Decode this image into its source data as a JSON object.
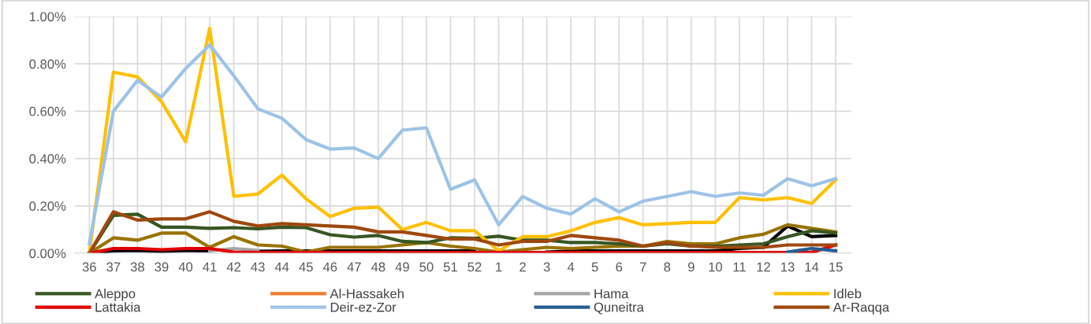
{
  "chart_data": {
    "type": "line",
    "categories": [
      "36",
      "37",
      "38",
      "39",
      "40",
      "41",
      "42",
      "43",
      "44",
      "45",
      "46",
      "47",
      "48",
      "49",
      "50",
      "51",
      "52",
      "1",
      "2",
      "3",
      "4",
      "5",
      "6",
      "7",
      "8",
      "9",
      "10",
      "11",
      "12",
      "13",
      "14",
      "15"
    ],
    "ylim": [
      0,
      1.0
    ],
    "yticks": [
      {
        "value": 0,
        "label": "0.00%"
      },
      {
        "value": 0.2,
        "label": "0.20%"
      },
      {
        "value": 0.4,
        "label": "0.40%"
      },
      {
        "value": 0.6,
        "label": "0.60%"
      },
      {
        "value": 0.8,
        "label": "0.80%"
      },
      {
        "value": 1.0,
        "label": "1.00%"
      }
    ],
    "grid": true,
    "legend": "bottom",
    "marker": "none",
    "line_style": "solid",
    "series": [
      {
        "name": null,
        "color": "#000000",
        "values": [
          0,
          0.01,
          0.012,
          0.008,
          0.012,
          0.01,
          null,
          0.008,
          0.01,
          0.01,
          0.01,
          0.01,
          0.01,
          0.01,
          0.01,
          0.01,
          0.01,
          null,
          null,
          0.005,
          0.01,
          0.01,
          0.01,
          0.01,
          0.01,
          0.01,
          0.01,
          0.02,
          0.025,
          0.115,
          0.07,
          0.075
        ]
      },
      {
        "name": null,
        "color": "#997300",
        "values": [
          0,
          0.065,
          0.055,
          0.085,
          0.085,
          0.025,
          0.07,
          0.035,
          0.03,
          0.005,
          0.025,
          0.025,
          0.025,
          0.035,
          0.045,
          0.03,
          0.02,
          0.005,
          0.015,
          0.025,
          0.02,
          0.025,
          0.03,
          0.03,
          0.05,
          0.04,
          0.04,
          0.065,
          0.08,
          0.12,
          0.105,
          0.09
        ]
      },
      {
        "name": "Aleppo",
        "color": "#375623",
        "values": [
          0,
          0.16,
          0.165,
          0.11,
          0.11,
          0.105,
          0.108,
          0.103,
          0.11,
          0.108,
          0.078,
          0.068,
          0.075,
          0.05,
          0.045,
          0.065,
          0.063,
          0.072,
          0.055,
          0.055,
          0.045,
          0.045,
          0.04,
          0.03,
          0.04,
          0.03,
          0.03,
          0.035,
          0.04,
          0.07,
          0.095,
          0.085
        ]
      },
      {
        "name": "Al-Hassakeh",
        "color": "#ed7d31",
        "values": [
          null,
          null,
          null,
          null,
          null,
          null,
          null,
          null,
          null,
          null,
          null,
          null,
          null,
          null,
          null,
          null,
          null,
          null,
          null,
          null,
          null,
          null,
          null,
          null,
          null,
          null,
          null,
          null,
          null,
          null,
          null,
          null
        ]
      },
      {
        "name": "Hama",
        "color": "#a5a5a5",
        "values": [
          null,
          null,
          null,
          null,
          null,
          0.01,
          0.02,
          0.012,
          null,
          null,
          null,
          null,
          null,
          null,
          null,
          null,
          null,
          null,
          null,
          null,
          null,
          null,
          null,
          null,
          null,
          null,
          null,
          null,
          null,
          null,
          null,
          null
        ]
      },
      {
        "name": "Idleb",
        "color": "#ffc000",
        "values": [
          0,
          0.765,
          0.745,
          0.64,
          0.47,
          0.95,
          0.24,
          0.25,
          0.33,
          0.23,
          0.155,
          0.19,
          0.195,
          0.1,
          0.13,
          0.095,
          0.095,
          0.01,
          0.07,
          0.07,
          0.095,
          0.13,
          0.15,
          0.12,
          0.125,
          0.13,
          0.13,
          0.235,
          0.225,
          0.235,
          0.21,
          0.31
        ]
      },
      {
        "name": "Lattakia",
        "color": "#e00000",
        "values": [
          0,
          0.02,
          0.02,
          0.015,
          0.02,
          0.02,
          0.005,
          0.003,
          0.003,
          0.003,
          0.003,
          0.003,
          0.003,
          0.003,
          0.003,
          0.003,
          0.003,
          0.003,
          0.003,
          0.003,
          0.003,
          0.003,
          0.003,
          0.003,
          0.003,
          0.003,
          0.003,
          0.003,
          0.003,
          0.003,
          0.003,
          0.035
        ]
      },
      {
        "name": "Deir-ez-Zor",
        "color": "#9dc3e6",
        "values": [
          0.04,
          0.6,
          0.73,
          0.66,
          0.78,
          0.88,
          0.75,
          0.61,
          0.57,
          0.48,
          0.44,
          0.445,
          0.4,
          0.52,
          0.53,
          0.27,
          0.31,
          0.12,
          0.24,
          0.19,
          0.165,
          0.23,
          0.175,
          0.22,
          0.24,
          0.26,
          0.24,
          0.255,
          0.245,
          0.315,
          0.285,
          0.315
        ]
      },
      {
        "name": "Quneitra",
        "color": "#255e91",
        "values": [
          null,
          null,
          null,
          null,
          null,
          null,
          null,
          null,
          null,
          null,
          null,
          null,
          null,
          null,
          null,
          null,
          null,
          null,
          null,
          null,
          null,
          null,
          null,
          null,
          null,
          null,
          null,
          null,
          null,
          0.005,
          0.02,
          0.01
        ]
      },
      {
        "name": "Ar-Raqqa",
        "color": "#9e480e",
        "values": [
          0,
          0.175,
          0.14,
          0.145,
          0.145,
          0.175,
          0.135,
          0.115,
          0.125,
          0.12,
          0.115,
          0.11,
          0.09,
          0.09,
          0.075,
          0.06,
          0.06,
          0.035,
          0.05,
          0.05,
          0.075,
          0.065,
          0.055,
          0.03,
          0.045,
          0.03,
          0.025,
          0.025,
          0.025,
          0.035,
          0.035,
          0.035
        ]
      }
    ]
  }
}
